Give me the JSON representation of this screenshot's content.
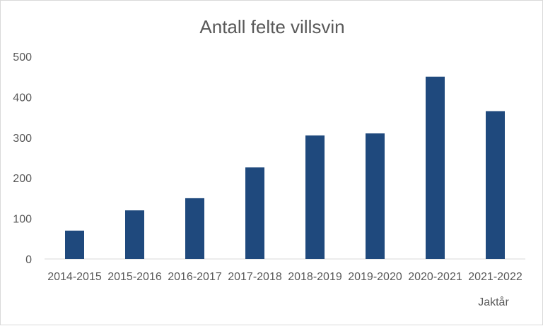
{
  "chart_data": {
    "type": "bar",
    "title": "Antall felte villsvin",
    "xlabel": "Jaktår",
    "ylabel": "",
    "categories": [
      "2014-2015",
      "2015-2016",
      "2016-2017",
      "2017-2018",
      "2018-2019",
      "2019-2020",
      "2020-2021",
      "2021-2022"
    ],
    "values": [
      70,
      120,
      150,
      226,
      305,
      310,
      450,
      365
    ],
    "ylim": [
      0,
      500
    ],
    "yticks": [
      "0",
      "100",
      "200",
      "300",
      "400",
      "500"
    ],
    "grid": false,
    "legend": "none",
    "bar_color": "#1f497d"
  }
}
